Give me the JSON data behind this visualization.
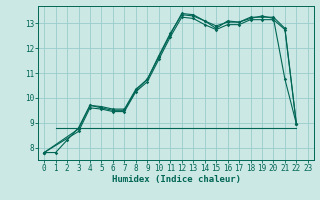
{
  "bg_color": "#cce8e4",
  "grid_color": "#99cccc",
  "line_color": "#006655",
  "xlabel": "Humidex (Indice chaleur)",
  "xlim": [
    -0.5,
    23.5
  ],
  "ylim": [
    7.5,
    13.7
  ],
  "yticks": [
    8,
    9,
    10,
    11,
    12,
    13
  ],
  "xticks": [
    0,
    1,
    2,
    3,
    4,
    5,
    6,
    7,
    8,
    9,
    10,
    11,
    12,
    13,
    14,
    15,
    16,
    17,
    18,
    19,
    20,
    21,
    22,
    23
  ],
  "line1_x": [
    0,
    1,
    2,
    3,
    4,
    5,
    6,
    7,
    8,
    9,
    10,
    11,
    12,
    13,
    14,
    15,
    16,
    17,
    18,
    19,
    20,
    21,
    22
  ],
  "line1_y": [
    7.8,
    7.8,
    8.3,
    8.8,
    9.7,
    9.65,
    9.55,
    9.55,
    10.35,
    10.75,
    11.65,
    12.55,
    13.4,
    13.35,
    13.1,
    12.9,
    13.05,
    13.05,
    13.2,
    13.3,
    13.2,
    10.75,
    8.95
  ],
  "line2_x": [
    0,
    3,
    4,
    5,
    6,
    7,
    8,
    9,
    10,
    11,
    12,
    13,
    14,
    15,
    16,
    17,
    18,
    19,
    20,
    21,
    22
  ],
  "line2_y": [
    7.8,
    8.65,
    9.6,
    9.55,
    9.45,
    9.45,
    10.25,
    10.65,
    11.55,
    12.45,
    13.25,
    13.2,
    12.95,
    12.75,
    12.95,
    12.95,
    13.15,
    13.15,
    13.15,
    12.75,
    8.95
  ],
  "line3_x": [
    0,
    3,
    4,
    5,
    6,
    7,
    8,
    9,
    10,
    11,
    12,
    13,
    14,
    15,
    16,
    17,
    18,
    19,
    20,
    21,
    22
  ],
  "line3_y": [
    7.8,
    8.75,
    9.7,
    9.6,
    9.5,
    9.5,
    10.3,
    10.75,
    11.7,
    12.6,
    13.35,
    13.3,
    13.1,
    12.8,
    13.1,
    13.05,
    13.25,
    13.25,
    13.25,
    12.8,
    8.95
  ],
  "line4_x": [
    1,
    15,
    22
  ],
  "line4_y": [
    8.8,
    8.8,
    8.8
  ]
}
